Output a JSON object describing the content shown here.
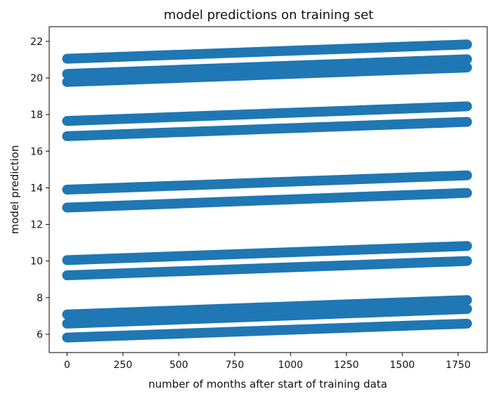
{
  "chart_data": {
    "type": "scatter",
    "title": "model predictions on training set",
    "xlabel": "number of months after start of training data",
    "ylabel": "model prediction",
    "xlim": [
      -80,
      1880
    ],
    "ylim": [
      5.0,
      22.8
    ],
    "xticks": [
      0,
      250,
      500,
      750,
      1000,
      1250,
      1500,
      1750
    ],
    "yticks": [
      6,
      8,
      10,
      12,
      14,
      16,
      18,
      20,
      22
    ],
    "grid": false,
    "legend": "none",
    "series": [
      {
        "x": [
          0,
          1790
        ],
        "y": [
          21.05,
          21.83
        ]
      },
      {
        "x": [
          0,
          1790
        ],
        "y": [
          20.22,
          21.02
        ]
      },
      {
        "x": [
          0,
          1790
        ],
        "y": [
          19.78,
          20.57
        ]
      },
      {
        "x": [
          0,
          1790
        ],
        "y": [
          17.65,
          18.45
        ]
      },
      {
        "x": [
          0,
          1790
        ],
        "y": [
          16.82,
          17.6
        ]
      },
      {
        "x": [
          0,
          1790
        ],
        "y": [
          13.9,
          14.68
        ]
      },
      {
        "x": [
          0,
          1790
        ],
        "y": [
          12.92,
          13.72
        ]
      },
      {
        "x": [
          0,
          1790
        ],
        "y": [
          10.05,
          10.82
        ]
      },
      {
        "x": [
          0,
          1790
        ],
        "y": [
          9.22,
          10.0
        ]
      },
      {
        "x": [
          0,
          1790
        ],
        "y": [
          7.08,
          7.87
        ]
      },
      {
        "x": [
          0,
          1790
        ],
        "y": [
          6.58,
          7.38
        ]
      },
      {
        "x": [
          0,
          1790
        ],
        "y": [
          5.82,
          6.58
        ]
      }
    ],
    "color": "#1f77b4"
  }
}
